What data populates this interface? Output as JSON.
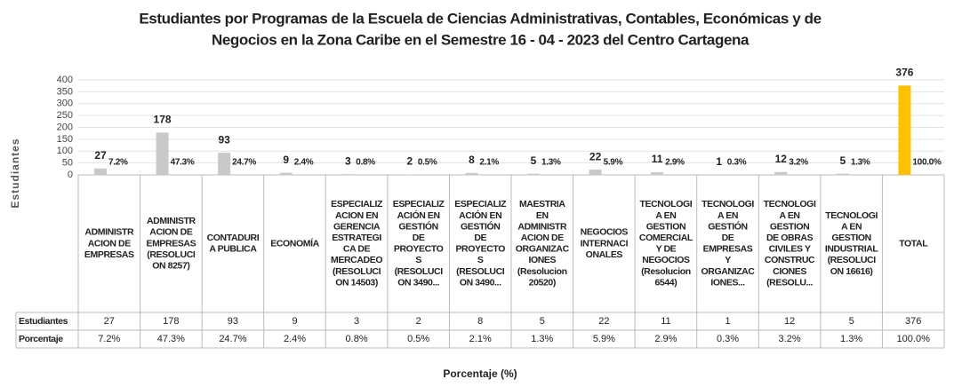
{
  "chart_data": {
    "type": "bar",
    "title": [
      "Estudiantes por Programas de la Escuela de Ciencias Administrativas, Contables, Económicas y de",
      "Negocios en la Zona Caribe en el Semestre 16 - 04 - 2023 del Centro Cartagena"
    ],
    "y_label": "Estudiantes",
    "x_label": "Porcentaje (%)",
    "categories": [
      [
        "ADMINISTR",
        "ACION DE",
        "EMPRESAS"
      ],
      [
        "ADMINISTR",
        "ACION DE",
        "EMPRESAS",
        "(RESOLUCI",
        "ON 8257)"
      ],
      [
        "CONTADURI",
        "A PUBLICA"
      ],
      [
        "ECONOMÍA"
      ],
      [
        "ESPECIALIZ",
        "ACION EN",
        "GERENCIA",
        "ESTRATEGI",
        "CA DE",
        "MERCADEO",
        "(RESOLUCI",
        "ON 14503)"
      ],
      [
        "ESPECIALIZ",
        "ACIÓN EN",
        "GESTIÓN",
        "DE",
        "PROYECTO",
        "S",
        "(RESOLUCI",
        "ON 3490..."
      ],
      [
        "ESPECIALIZ",
        "ACIÓN EN",
        "GESTIÓN",
        "DE",
        "PROYECTO",
        "S",
        "(RESOLUCI",
        "ON 3490..."
      ],
      [
        "MAESTRIA",
        "EN",
        "ADMINISTR",
        "ACION DE",
        "ORGANIZAC",
        "IONES",
        "(Resolucion",
        "20520)"
      ],
      [
        "NEGOCIOS",
        "INTERNACI",
        "ONALES"
      ],
      [
        "TECNOLOGI",
        "A EN",
        "GESTION",
        "COMERCIAL",
        "Y DE",
        "NEGOCIOS",
        "(Resolucion",
        "6544)"
      ],
      [
        "TECNOLOGI",
        "A EN",
        "GESTIÓN",
        "DE",
        "EMPRESAS",
        "Y",
        "ORGANIZAC",
        "IONES..."
      ],
      [
        "TECNOLOGI",
        "A EN",
        "GESTION",
        "DE OBRAS",
        "CIVILES Y",
        "CONSTRUC",
        "CIONES",
        "(RESOLU..."
      ],
      [
        "TECNOLOGI",
        "A EN",
        "GESTION",
        "INDUSTRIAL",
        "(RESOLUCI",
        "ON 16616)"
      ],
      [
        "TOTAL"
      ]
    ],
    "series": [
      {
        "name": "Estudiantes",
        "colors": [
          "#c9c9c9",
          "#c9c9c9",
          "#c9c9c9",
          "#c9c9c9",
          "#c9c9c9",
          "#c9c9c9",
          "#c9c9c9",
          "#c9c9c9",
          "#c9c9c9",
          "#c9c9c9",
          "#c9c9c9",
          "#c9c9c9",
          "#c9c9c9",
          "#ffc000"
        ],
        "values": [
          27,
          178,
          93,
          9,
          3,
          2,
          8,
          5,
          22,
          11,
          1,
          12,
          5,
          376
        ]
      },
      {
        "name": "Porcentaje",
        "values": [
          7.2,
          47.3,
          24.7,
          2.4,
          0.8,
          0.5,
          2.1,
          1.3,
          5.9,
          2.9,
          0.3,
          3.2,
          1.3,
          100.0
        ],
        "value_labels": [
          "7.2%",
          "47.3%",
          "24.7%",
          "2.4%",
          "0.8%",
          "0.5%",
          "2.1%",
          "1.3%",
          "5.9%",
          "2.9%",
          "0.3%",
          "3.2%",
          "1.3%",
          "100.0%"
        ]
      }
    ],
    "ylim": [
      0,
      400
    ],
    "yticks": [
      0,
      50,
      100,
      150,
      200,
      250,
      300,
      350,
      400
    ],
    "grid": true
  }
}
